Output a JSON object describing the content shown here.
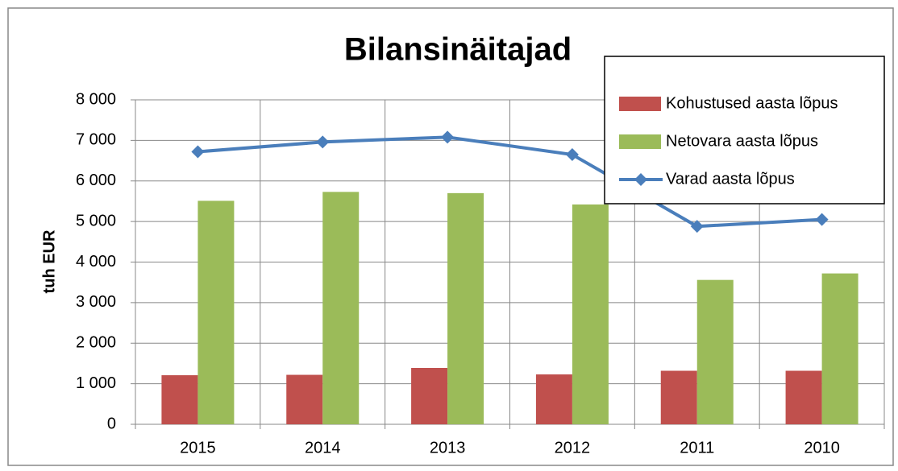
{
  "chart_data": {
    "type": "bar-line",
    "title": "Bilansinäitajad",
    "y_label": "tuh EUR",
    "categories": [
      "2015",
      "2014",
      "2013",
      "2012",
      "2011",
      "2010"
    ],
    "series": [
      {
        "name": "Kohustused aasta lõpus",
        "type": "bar",
        "color": "#c0504d",
        "values": [
          1210,
          1220,
          1390,
          1230,
          1320,
          1320
        ]
      },
      {
        "name": "Netovara aasta lõpus",
        "type": "bar",
        "color": "#9bbb59",
        "values": [
          5510,
          5730,
          5700,
          5420,
          3560,
          3720
        ]
      },
      {
        "name": "Varad aasta lõpus",
        "type": "line",
        "color": "#4a7ebb",
        "values": [
          6720,
          6960,
          7080,
          6650,
          4880,
          5050
        ]
      }
    ],
    "ylim": [
      0,
      8000
    ],
    "yticks": [
      0,
      {
        "value": 1000,
        "label": "1 000"
      },
      {
        "value": 2000,
        "label": "2 000"
      },
      {
        "value": 3000,
        "label": "3 000"
      },
      {
        "value": 4000,
        "label": "4 000"
      },
      {
        "value": 5000,
        "label": "5 000"
      },
      {
        "value": 6000,
        "label": "6 000"
      },
      {
        "value": 7000,
        "label": "7 000"
      },
      {
        "value": 8000,
        "label": "8 000"
      }
    ],
    "grid": true,
    "legend": "top-right"
  }
}
